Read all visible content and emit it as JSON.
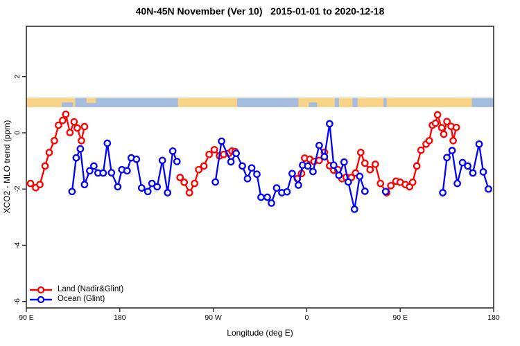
{
  "title": "40N-45N November (Ver 10)   2015-01-01 to 2020-12-18",
  "axes": {
    "xlabel": "Longitude (deg E)",
    "ylabel": "XCO2 - MLO trend (ppm)"
  },
  "legend": {
    "items": [
      {
        "label": "Land (Nadir&Glint)",
        "color": "#ff0000"
      },
      {
        "label": "Ocean (Glint)",
        "color": "#0000ff"
      }
    ]
  },
  "map_strip": {
    "description": "world coastline band 40N-45N drawn across the plot near +1 ppm",
    "top_value": 1.25,
    "bottom_value": 0.91,
    "land_color": "#f9d387",
    "ocean_color": "#a6bde0",
    "land_segments": [
      [
        90,
        137
      ],
      [
        236,
        293
      ],
      [
        352,
        387
      ],
      [
        391,
        404
      ],
      [
        409,
        434
      ],
      [
        437,
        519
      ]
    ],
    "land_top_slivers": [
      [
        148,
        157
      ]
    ],
    "ocean_bottom_patches": [
      [
        124,
        135
      ],
      [
        362,
        370
      ]
    ]
  },
  "chart_data": {
    "type": "line",
    "title": "40N-45N November (Ver 10)   2015-01-01 to 2020-12-18",
    "xlabel": "Longitude (deg E)",
    "ylabel": "XCO2 - MLO trend (ppm)",
    "xlim": [
      90,
      540
    ],
    "ylim": [
      -6.23,
      3.79
    ],
    "grid": false,
    "legend_position": "bottom-left",
    "x_ticks": {
      "values": [
        90,
        180,
        270,
        360,
        450,
        540
      ],
      "labels": [
        "90 E",
        "180",
        "90 W",
        "0",
        "90 E",
        "180"
      ]
    },
    "y_ticks": {
      "values": [
        2,
        0,
        -2,
        -4,
        -6
      ],
      "labels": [
        "2",
        "0",
        "-2",
        "-4",
        "-6"
      ]
    },
    "x_note": "longitude axis wraps eastward from 90E; values >360 are lon-360",
    "series": [
      {
        "name": "Land (Nadir&Glint)",
        "color": "#ff0000",
        "marker": "open-circle",
        "segments": [
          [
            [
              94,
              -1.8
            ],
            [
              99,
              -1.95
            ],
            [
              103,
              -1.84
            ],
            [
              108,
              -1.18
            ],
            [
              112,
              -0.7
            ],
            [
              117,
              -0.28
            ],
            [
              121,
              0.27
            ],
            [
              125,
              0.44
            ],
            [
              128,
              0.66
            ],
            [
              132,
              0.01
            ],
            [
              136,
              0.39
            ],
            [
              139,
              0.17
            ],
            [
              143,
              -0.28
            ],
            [
              146,
              0.22
            ]
          ],
          [
            [
              238,
              -1.59
            ],
            [
              242,
              -1.76
            ],
            [
              247,
              -2.13
            ],
            [
              252,
              -1.8
            ],
            [
              256,
              -1.31
            ],
            [
              261,
              -1.18
            ],
            [
              266,
              -0.77
            ],
            [
              271,
              -0.6
            ],
            [
              276,
              -0.82
            ],
            [
              280,
              -0.77
            ],
            [
              285,
              -0.73
            ],
            [
              288,
              -0.65
            ],
            [
              291,
              -0.67
            ]
          ],
          [
            [
              351,
              -1.63
            ],
            [
              355,
              -1.45
            ],
            [
              358,
              -0.9
            ],
            [
              363,
              -0.94
            ],
            [
              367,
              -1.02
            ],
            [
              372,
              -0.98
            ],
            [
              377,
              -0.69
            ],
            [
              382,
              -1.17
            ],
            [
              386,
              -1.33
            ],
            [
              390,
              -1.31
            ],
            [
              394,
              -1.63
            ],
            [
              398,
              -1.58
            ],
            [
              403,
              -1.59
            ],
            [
              407,
              -1.43
            ],
            [
              412,
              -0.7
            ],
            [
              416,
              -1.08
            ],
            [
              421,
              -1.31
            ],
            [
              426,
              -1.12
            ],
            [
              431,
              -1.8
            ],
            [
              437,
              -2.13
            ],
            [
              441,
              -1.88
            ],
            [
              446,
              -1.72
            ],
            [
              450,
              -1.76
            ],
            [
              455,
              -1.84
            ],
            [
              459,
              -1.92
            ],
            [
              462,
              -1.76
            ],
            [
              466,
              -1.18
            ],
            [
              470,
              -0.62
            ],
            [
              475,
              -0.4
            ],
            [
              478,
              -0.28
            ],
            [
              481,
              0.27
            ],
            [
              484,
              0.34
            ],
            [
              486,
              0.64
            ],
            [
              490,
              0.18
            ],
            [
              492,
              -0.05
            ],
            [
              495,
              0.4
            ],
            [
              499,
              0.23
            ],
            [
              501,
              -0.28
            ],
            [
              504,
              0.19
            ]
          ]
        ]
      },
      {
        "name": "Ocean (Glint)",
        "color": "#0000ff",
        "marker": "open-circle",
        "segments": [
          [
            [
              134,
              -2.09
            ],
            [
              138,
              -0.89
            ],
            [
              142,
              -0.57
            ],
            [
              146,
              -1.84
            ],
            [
              151,
              -1.35
            ],
            [
              155,
              -1.18
            ],
            [
              159,
              -1.43
            ],
            [
              164,
              -1.43
            ],
            [
              168,
              -0.37
            ],
            [
              172,
              -1.42
            ],
            [
              178,
              -1.92
            ],
            [
              182,
              -1.31
            ],
            [
              187,
              -1.35
            ],
            [
              191,
              -0.89
            ],
            [
              196,
              -0.94
            ],
            [
              201,
              -1.96
            ],
            [
              207,
              -2.09
            ],
            [
              211,
              -1.8
            ],
            [
              216,
              -1.92
            ],
            [
              221,
              -0.98
            ],
            [
              226,
              -2.13
            ],
            [
              231,
              -0.65
            ],
            [
              235,
              -1.02
            ]
          ],
          [
            [
              272,
              -1.75
            ],
            [
              278,
              -0.3
            ],
            [
              287,
              -1.03
            ],
            [
              292,
              -0.73
            ],
            [
              298,
              -1.18
            ],
            [
              303,
              -1.63
            ],
            [
              307,
              -1.25
            ],
            [
              312,
              -1.47
            ],
            [
              316,
              -2.29
            ],
            [
              322,
              -2.29
            ],
            [
              326,
              -2.5
            ],
            [
              331,
              -1.96
            ],
            [
              336,
              -2.13
            ],
            [
              341,
              -2.1
            ],
            [
              346,
              -1.45
            ],
            [
              352,
              -1.86
            ],
            [
              356,
              -1.15
            ],
            [
              361,
              -1.18
            ],
            [
              366,
              -1.38
            ],
            [
              372,
              -0.45
            ],
            [
              377,
              -0.85
            ],
            [
              382,
              0.32
            ],
            [
              386,
              -1.15
            ],
            [
              391,
              -1.51
            ],
            [
              396,
              -1.04
            ],
            [
              400,
              -1.75
            ],
            [
              406,
              -2.72
            ],
            [
              411,
              -1.55
            ],
            [
              416,
              -2.08
            ]
          ],
          [
            [
              436,
              -2.09
            ]
          ],
          [
            [
              491,
              -2.13
            ],
            [
              495,
              -0.88
            ],
            [
              500,
              -0.63
            ],
            [
              505,
              -1.8
            ],
            [
              510,
              -1.06
            ],
            [
              515,
              -1.18
            ],
            [
              520,
              -1.43
            ],
            [
              526,
              -0.4
            ],
            [
              530,
              -1.39
            ],
            [
              535,
              -2.0
            ]
          ]
        ]
      }
    ]
  }
}
